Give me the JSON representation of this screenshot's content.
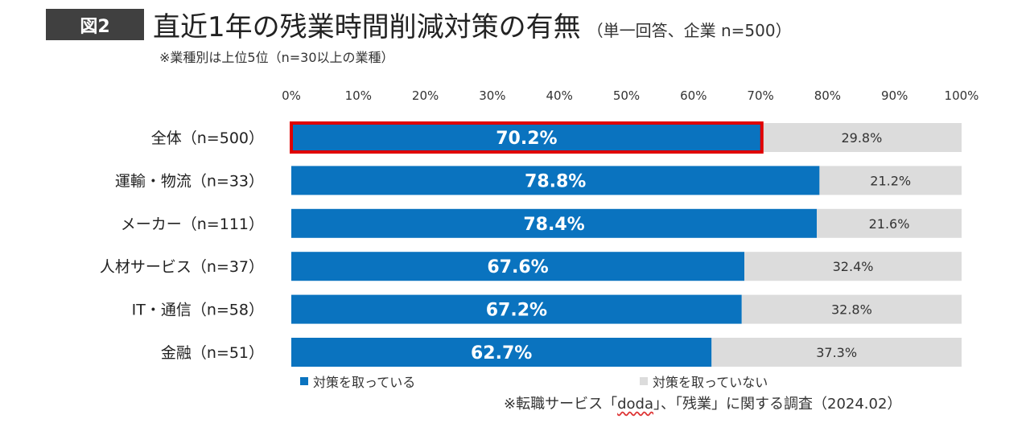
{
  "figure": {
    "badge": "図2",
    "title": "直近1年の残業時間削減対策の有無",
    "title_note": "（単一回答、企業 n=500）",
    "subtitle": "※業種別は上位5位（n=30以上の業種）",
    "source_prefix": "※転職サービス「",
    "source_doda": "doda",
    "source_suffix": "」、「残業」に関する調査（2024.02）"
  },
  "legend": {
    "yes": "対策を取っている",
    "no": "対策を取っていない"
  },
  "colors": {
    "yes": "#0a73bf",
    "no": "#dcdcdc",
    "highlight": "#e00000"
  },
  "chart_data": {
    "type": "bar",
    "orientation": "horizontal",
    "stacked": true,
    "xlim": [
      0,
      100
    ],
    "x_ticks": [
      "0%",
      "10%",
      "20%",
      "30%",
      "40%",
      "50%",
      "60%",
      "70%",
      "80%",
      "90%",
      "100%"
    ],
    "categories": [
      "全体（n=500）",
      "運輸・物流（n=33）",
      "メーカー（n=111）",
      "人材サービス（n=37）",
      "IT・通信（n=58）",
      "金融（n=51）"
    ],
    "series": [
      {
        "name": "対策を取っている",
        "values": [
          70.2,
          78.8,
          78.4,
          67.6,
          67.2,
          62.7
        ],
        "labels": [
          "70.2%",
          "78.8%",
          "78.4%",
          "67.6%",
          "67.2%",
          "62.7%"
        ]
      },
      {
        "name": "対策を取っていない",
        "values": [
          29.8,
          21.2,
          21.6,
          32.4,
          32.8,
          37.3
        ],
        "labels": [
          "29.8%",
          "21.2%",
          "21.6%",
          "32.4%",
          "32.8%",
          "37.3%"
        ]
      }
    ],
    "highlighted_category": "全体（n=500）",
    "legend_position": "bottom",
    "grid": false
  }
}
